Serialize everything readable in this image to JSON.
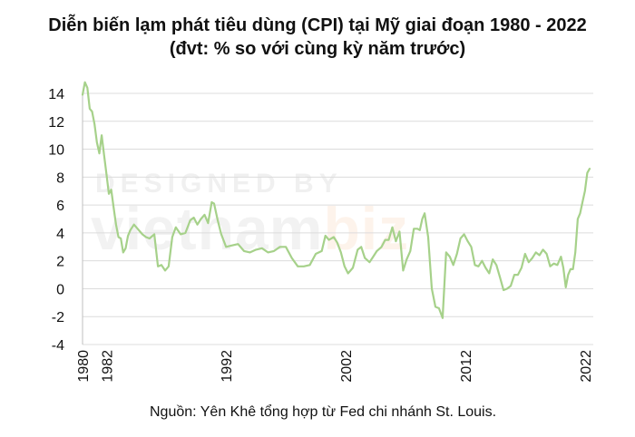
{
  "chart_data": {
    "type": "line",
    "title": "Diễn biến lạm phát tiêu dùng (CPI) tại Mỹ giai đoạn 1980 - 2022",
    "subtitle": "(đvt: % so với cùng kỳ năm trước)",
    "xlabel": "",
    "ylabel": "",
    "ylim": [
      -4,
      14
    ],
    "yticks": [
      14,
      12,
      10,
      8,
      6,
      4,
      2,
      0,
      -2,
      -4
    ],
    "xlim": [
      1980,
      2022.7
    ],
    "xticks": [
      "1980",
      "1982",
      "1992",
      "2002",
      "2012",
      "2022"
    ],
    "grid": true,
    "line_color": "#a6d18a",
    "series": [
      {
        "x": [
          1980.0,
          1980.2,
          1980.4,
          1980.6,
          1980.8,
          1981.0,
          1981.2,
          1981.4,
          1981.6,
          1981.8,
          1982.0,
          1982.2,
          1982.4,
          1982.6,
          1982.8,
          1983.0,
          1983.2,
          1983.4,
          1983.6,
          1983.8,
          1984.0,
          1984.3,
          1984.6,
          1985.0,
          1985.3,
          1985.6,
          1986.0,
          1986.3,
          1986.6,
          1986.9,
          1987.2,
          1987.5,
          1987.8,
          1988.2,
          1988.6,
          1989.0,
          1989.3,
          1989.6,
          1989.9,
          1990.2,
          1990.5,
          1990.8,
          1991.0,
          1991.3,
          1991.6,
          1992.0,
          1992.5,
          1993.0,
          1993.5,
          1994.0,
          1994.5,
          1995.0,
          1995.5,
          1996.0,
          1996.5,
          1997.0,
          1997.5,
          1998.0,
          1998.5,
          1999.0,
          1999.5,
          2000.0,
          2000.3,
          2000.6,
          2001.0,
          2001.3,
          2001.6,
          2001.9,
          2002.2,
          2002.6,
          2003.0,
          2003.3,
          2003.6,
          2004.0,
          2004.3,
          2004.6,
          2005.0,
          2005.3,
          2005.6,
          2005.9,
          2006.2,
          2006.5,
          2006.8,
          2007.1,
          2007.4,
          2007.7,
          2008.0,
          2008.2,
          2008.4,
          2008.6,
          2008.9,
          2009.2,
          2009.5,
          2009.8,
          2010.1,
          2010.4,
          2010.7,
          2011.0,
          2011.3,
          2011.6,
          2011.9,
          2012.2,
          2012.5,
          2012.8,
          2013.1,
          2013.4,
          2013.7,
          2014.0,
          2014.3,
          2014.6,
          2014.9,
          2015.2,
          2015.5,
          2015.8,
          2016.1,
          2016.4,
          2016.7,
          2017.0,
          2017.3,
          2017.6,
          2017.9,
          2018.2,
          2018.5,
          2018.8,
          2019.1,
          2019.4,
          2019.7,
          2020.0,
          2020.2,
          2020.4,
          2020.6,
          2020.8,
          2021.0,
          2021.2,
          2021.4,
          2021.6,
          2021.8,
          2022.0,
          2022.2,
          2022.4
        ],
        "values": [
          13.9,
          14.8,
          14.4,
          12.9,
          12.7,
          11.8,
          10.5,
          9.7,
          11.0,
          9.6,
          8.2,
          6.8,
          7.1,
          5.8,
          4.6,
          3.7,
          3.6,
          2.6,
          2.9,
          3.8,
          4.2,
          4.6,
          4.3,
          3.9,
          3.7,
          3.6,
          3.9,
          1.6,
          1.7,
          1.3,
          1.6,
          3.7,
          4.4,
          3.9,
          4.0,
          4.9,
          5.1,
          4.6,
          5.0,
          5.3,
          4.7,
          6.2,
          6.1,
          4.9,
          3.9,
          3.0,
          3.1,
          3.2,
          2.7,
          2.6,
          2.8,
          2.9,
          2.6,
          2.7,
          3.0,
          3.0,
          2.2,
          1.6,
          1.6,
          1.7,
          2.5,
          2.7,
          3.8,
          3.5,
          3.7,
          3.3,
          2.6,
          1.6,
          1.1,
          1.5,
          2.8,
          3.0,
          2.2,
          1.9,
          2.3,
          2.7,
          3.0,
          3.5,
          3.5,
          4.4,
          3.4,
          4.1,
          1.3,
          2.1,
          2.7,
          4.3,
          4.3,
          4.2,
          5.0,
          5.4,
          3.7,
          0.0,
          -1.3,
          -1.4,
          -2.1,
          2.6,
          2.3,
          1.7,
          2.5,
          3.6,
          3.9,
          3.4,
          3.0,
          1.7,
          1.6,
          2.0,
          1.5,
          1.1,
          2.1,
          1.7,
          0.8,
          -0.1,
          0.0,
          0.2,
          1.0,
          1.0,
          1.5,
          2.5,
          1.9,
          2.2,
          2.6,
          2.4,
          2.8,
          2.5,
          1.6,
          1.8,
          1.7,
          2.3,
          1.5,
          0.1,
          1.0,
          1.4,
          1.4,
          2.6,
          5.0,
          5.4,
          6.2,
          7.0,
          8.3,
          8.6
        ]
      }
    ]
  },
  "source": "Nguồn: Yên Khê tổng hợp từ Fed chi nhánh St. Louis.",
  "watermark": {
    "top": "DESIGNED BY",
    "main_prefix": "vietnam",
    "main_suffix": "biz"
  }
}
